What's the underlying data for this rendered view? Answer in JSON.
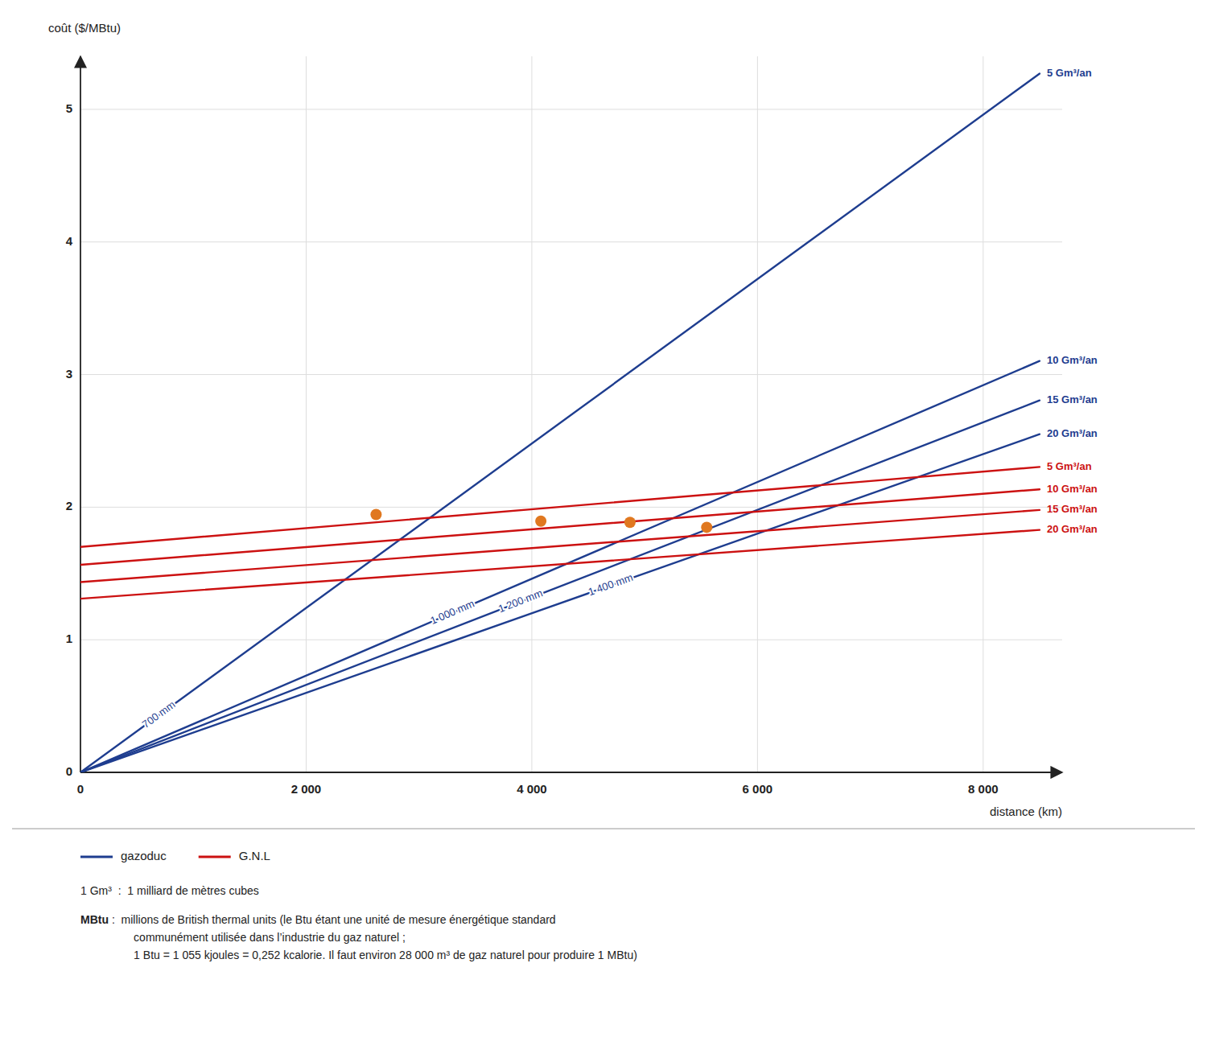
{
  "chart_data": {
    "type": "line",
    "xlabel": "distance (km)",
    "ylabel": "coût ($/MBtu)",
    "xlim": [
      0,
      8700
    ],
    "ylim": [
      0,
      5.4
    ],
    "xticks": [
      0,
      {
        "value": 2000,
        "label": "2 000"
      },
      {
        "value": 4000,
        "label": "4 000"
      },
      {
        "value": 6000,
        "label": "6 000"
      },
      {
        "value": 8000,
        "label": "8 000"
      }
    ],
    "yticks": [
      0,
      1,
      2,
      3,
      4,
      5
    ],
    "grid": true,
    "legend": "bottom",
    "series": [
      {
        "name": "gazoduc",
        "label": "5 Gm³/an",
        "diameter_label": "700 mm",
        "color": "#1e3d8f",
        "x": [
          0,
          8500
        ],
        "values": [
          0,
          5.27
        ]
      },
      {
        "name": "gazoduc",
        "label": "10 Gm³/an",
        "diameter_label": "1 000 mm",
        "color": "#1e3d8f",
        "x": [
          0,
          8500
        ],
        "values": [
          0,
          3.1025
        ]
      },
      {
        "name": "gazoduc",
        "label": "15 Gm³/an",
        "diameter_label": "1 200 mm",
        "color": "#1e3d8f",
        "x": [
          0,
          8500
        ],
        "values": [
          0,
          2.805
        ]
      },
      {
        "name": "gazoduc",
        "label": "20 Gm³/an",
        "diameter_label": "1 400 mm",
        "color": "#1e3d8f",
        "x": [
          0,
          8500
        ],
        "values": [
          0,
          2.55
        ]
      },
      {
        "name": "G.N.L",
        "label": "5 Gm³/an",
        "color": "#cc1111",
        "x": [
          0,
          8500
        ],
        "values": [
          1.7,
          2.3035
        ]
      },
      {
        "name": "G.N.L",
        "label": "10 Gm³/an",
        "color": "#cc1111",
        "x": [
          0,
          8500
        ],
        "values": [
          1.565,
          2.1345
        ]
      },
      {
        "name": "G.N.L",
        "label": "15 Gm³/an",
        "color": "#cc1111",
        "x": [
          0,
          8500
        ],
        "values": [
          1.435,
          1.979
        ]
      },
      {
        "name": "G.N.L",
        "label": "20 Gm³/an",
        "color": "#cc1111",
        "x": [
          0,
          8500
        ],
        "values": [
          1.31,
          1.8285
        ]
      },
      {
        "type": "scatter",
        "marker": "circle",
        "color": "#e07820",
        "x": [
          2620,
          4080,
          4870,
          5550
        ],
        "values": [
          1.945,
          1.895,
          1.885,
          1.848
        ]
      }
    ],
    "footnotes": [
      {
        "lines": [
          "1 Gm³  :  1 milliard de mètres cubes"
        ]
      },
      {
        "term": "MBtu",
        "lines": [
          " :  millions de British thermal units (le Btu étant une unité de mesure énergétique standard",
          "        communément utilisée dans l’industrie du gaz naturel ;",
          "        1 Btu = 1 055 kjoules = 0,252 kcalorie. Il faut environ 28 000 m³ de gaz naturel pour produire 1 MBtu)"
        ]
      }
    ]
  }
}
